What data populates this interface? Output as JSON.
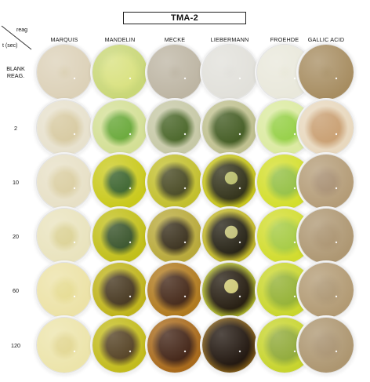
{
  "title": "TMA-2",
  "header": {
    "reag": "reag",
    "time": "t (sec)"
  },
  "columns": [
    {
      "label": "MARQUIS",
      "key": "marquis"
    },
    {
      "label": "MANDELIN",
      "key": "mandelin"
    },
    {
      "label": "MECKE",
      "key": "mecke"
    },
    {
      "label": "LIEBERMANN",
      "key": "liebermann"
    },
    {
      "label": "FROEHDE",
      "key": "froehde"
    },
    {
      "label": "GALLIC ACID",
      "key": "gallic"
    }
  ],
  "rows": [
    {
      "label_lines": [
        "BLANK",
        "REAG."
      ],
      "colors": [
        {
          "bg": "#dcd1b8",
          "spot": "#d6caa9",
          "spot_size": 0.0,
          "ring": ""
        },
        {
          "bg": "#c9d777",
          "spot": "#d7e07a",
          "spot_size": 0.5,
          "ring": ""
        },
        {
          "bg": "#bdb5a3",
          "spot": "#b5ac98",
          "spot_size": 0.0,
          "ring": ""
        },
        {
          "bg": "#e1e0da",
          "spot": "#dddcd6",
          "spot_size": 0.0,
          "ring": ""
        },
        {
          "bg": "#e9e8db",
          "spot": "#e6e5d4",
          "spot_size": 0.0,
          "ring": ""
        },
        {
          "bg": "#a78d61",
          "spot": "#a08658",
          "spot_size": 0.0,
          "ring": ""
        }
      ]
    },
    {
      "label_lines": [
        "2"
      ],
      "colors": [
        {
          "bg": "#e7e1cd",
          "spot": "#d5c79c",
          "spot_size": 0.45,
          "ring": ""
        },
        {
          "bg": "#d3df95",
          "spot": "#5fa32c",
          "spot_size": 0.4,
          "ring": ""
        },
        {
          "bg": "#c6c8a6",
          "spot": "#3f5d1c",
          "spot_size": 0.45,
          "ring": ""
        },
        {
          "bg": "#bfc08f",
          "spot": "#3a5418",
          "spot_size": 0.52,
          "ring": ""
        },
        {
          "bg": "#dbeaa0",
          "spot": "#8fcd3b",
          "spot_size": 0.42,
          "ring": ""
        },
        {
          "bg": "#e8d8be",
          "spot": "#c69a6a",
          "spot_size": 0.5,
          "ring": ""
        }
      ]
    },
    {
      "label_lines": [
        "10"
      ],
      "colors": [
        {
          "bg": "#e7e0c6",
          "spot": "#d8cb9c",
          "spot_size": 0.35,
          "ring": ""
        },
        {
          "bg": "#c9c91c",
          "spot": "#2f5a20",
          "spot_size": 0.35,
          "ring": ""
        },
        {
          "bg": "#c2bf2d",
          "spot": "#3f4017",
          "spot_size": 0.45,
          "ring": ""
        },
        {
          "bg": "#c5c31d",
          "spot": "#2a2a10",
          "spot_size": 0.62,
          "ring": "#c9cf6a"
        },
        {
          "bg": "#d3de2c",
          "spot": "#8fbd3a",
          "spot_size": 0.42,
          "ring": ""
        },
        {
          "bg": "#b49c77",
          "spot": "#a3896a",
          "spot_size": 0.3,
          "ring": ""
        }
      ]
    },
    {
      "label_lines": [
        "20"
      ],
      "colors": [
        {
          "bg": "#e9e3bd",
          "spot": "#d9cf8e",
          "spot_size": 0.28,
          "ring": ""
        },
        {
          "bg": "#c1bf19",
          "spot": "#2d4a1e",
          "spot_size": 0.42,
          "ring": ""
        },
        {
          "bg": "#b8a93a",
          "spot": "#2f2510",
          "spot_size": 0.45,
          "ring": ""
        },
        {
          "bg": "#c0b62a",
          "spot": "#1e1a0c",
          "spot_size": 0.62,
          "ring": "#d8d77c"
        },
        {
          "bg": "#d1dc2e",
          "spot": "#a1c838",
          "spot_size": 0.45,
          "ring": ""
        },
        {
          "bg": "#ae9772",
          "spot": "#a58c66",
          "spot_size": 0.3,
          "ring": ""
        }
      ]
    },
    {
      "label_lines": [
        "60"
      ],
      "colors": [
        {
          "bg": "#ece2a6",
          "spot": "#e4d98a",
          "spot_size": 0.25,
          "ring": ""
        },
        {
          "bg": "#bfb41b",
          "spot": "#3d2d14",
          "spot_size": 0.5,
          "ring": ""
        },
        {
          "bg": "#b07a1f",
          "spot": "#3b1d0c",
          "spot_size": 0.5,
          "ring": ""
        },
        {
          "bg": "#a8b02a",
          "spot": "#1f1609",
          "spot_size": 0.68,
          "ring": "#e8e27a"
        },
        {
          "bg": "#c9d62d",
          "spot": "#8fae2a",
          "spot_size": 0.5,
          "ring": ""
        },
        {
          "bg": "#b29a73",
          "spot": "#a8906a",
          "spot_size": 0.3,
          "ring": ""
        }
      ]
    },
    {
      "label_lines": [
        "120"
      ],
      "colors": [
        {
          "bg": "#ece4aa",
          "spot": "#e0d48a",
          "spot_size": 0.25,
          "ring": ""
        },
        {
          "bg": "#c2bb1c",
          "spot": "#4c3818",
          "spot_size": 0.48,
          "ring": ""
        },
        {
          "bg": "#a86a1c",
          "spot": "#3a1a0b",
          "spot_size": 0.55,
          "ring": ""
        },
        {
          "bg": "#7e5a18",
          "spot": "#1b1008",
          "spot_size": 0.7,
          "ring": ""
        },
        {
          "bg": "#c7d42e",
          "spot": "#8ba62f",
          "spot_size": 0.5,
          "ring": ""
        },
        {
          "bg": "#ad9670",
          "spot": "#a48c68",
          "spot_size": 0.3,
          "ring": ""
        }
      ]
    }
  ]
}
